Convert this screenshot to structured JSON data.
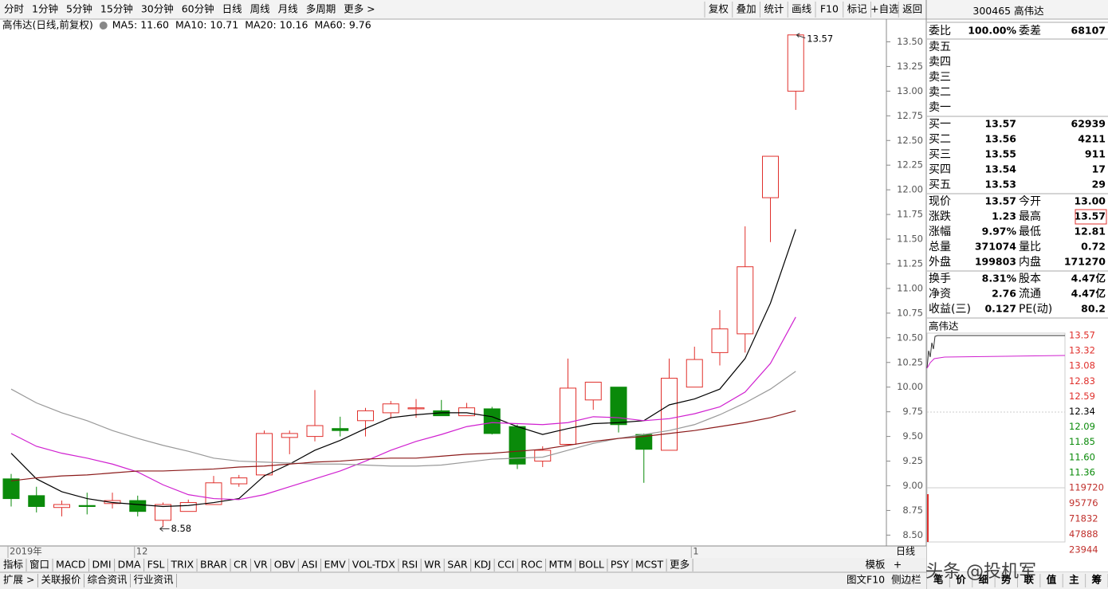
{
  "toolbar": {
    "periods": [
      "分时",
      "1分钟",
      "5分钟",
      "15分钟",
      "30分钟",
      "60分钟",
      "日线",
      "周线",
      "月线",
      "多周期",
      "更多 >"
    ],
    "active": "日线",
    "buttons": [
      "复权",
      "叠加",
      "统计",
      "画线",
      "F10",
      "标记",
      "+自选",
      "返回"
    ]
  },
  "chart_data": {
    "type": "candlestick",
    "title": "高伟达(日线,前复权)",
    "ma_labels": [
      {
        "text": "MA5: 11.60",
        "color": "#000000"
      },
      {
        "text": "MA10: 10.71",
        "color": "#d020d0"
      },
      {
        "text": "MA20: 10.16",
        "color": "#888888"
      },
      {
        "text": "MA60: 9.76",
        "color": "#8b1a1a"
      }
    ],
    "ylim": [
      8.39,
      13.73
    ],
    "yticks": [
      {
        "value": 8.5,
        "label": "8.50"
      },
      {
        "value": 8.75,
        "label": "8.75"
      },
      {
        "value": 9,
        "label": "9.00"
      },
      {
        "value": 9.25,
        "label": "9.25"
      },
      {
        "value": 9.5,
        "label": "9.50"
      },
      {
        "value": 9.75,
        "label": "9.75"
      },
      {
        "value": 10,
        "label": "10.00"
      },
      {
        "value": 10.25,
        "label": "10.25"
      },
      {
        "value": 10.5,
        "label": "10.50"
      },
      {
        "value": 10.75,
        "label": "10.75"
      },
      {
        "value": 11,
        "label": "11.00"
      },
      {
        "value": 11.25,
        "label": "11.25"
      },
      {
        "value": 11.5,
        "label": "11.50"
      },
      {
        "value": 11.75,
        "label": "11.75"
      },
      {
        "value": 12,
        "label": "12.00"
      },
      {
        "value": 12.25,
        "label": "12.25"
      },
      {
        "value": 12.5,
        "label": "12.50"
      },
      {
        "value": 12.75,
        "label": "12.75"
      },
      {
        "value": 13,
        "label": "13.00"
      },
      {
        "value": 13.25,
        "label": "13.25"
      },
      {
        "value": 13.5,
        "label": "13.50"
      }
    ],
    "categories": [
      "2019年",
      null,
      null,
      null,
      null,
      "12",
      null,
      null,
      null,
      null,
      null,
      null,
      null,
      null,
      null,
      null,
      null,
      null,
      null,
      null,
      null,
      null,
      null,
      null,
      null,
      null,
      null,
      "1",
      null,
      null,
      null,
      null
    ],
    "open": [
      9.07,
      8.9,
      8.78,
      8.8,
      8.82,
      8.85,
      8.65,
      8.74,
      8.81,
      9.02,
      9.11,
      9.49,
      9.5,
      9.58,
      9.66,
      9.74,
      9.78,
      9.76,
      9.71,
      9.78,
      9.6,
      9.25,
      9.42,
      9.87,
      10.0,
      9.52,
      9.36,
      10.0,
      10.35,
      10.54,
      11.92,
      13.0
    ],
    "high": [
      9.12,
      8.99,
      8.85,
      8.93,
      8.93,
      8.9,
      8.83,
      8.86,
      9.1,
      9.11,
      9.56,
      9.56,
      9.97,
      9.7,
      9.79,
      9.86,
      9.88,
      9.87,
      9.84,
      9.8,
      9.62,
      9.4,
      10.29,
      10.05,
      10.0,
      9.53,
      10.29,
      10.41,
      10.78,
      11.63,
      12.34,
      13.57
    ],
    "low": [
      8.79,
      8.73,
      8.69,
      8.71,
      8.77,
      8.69,
      8.58,
      8.74,
      8.81,
      8.99,
      9.09,
      9.32,
      9.45,
      9.5,
      9.5,
      9.68,
      9.69,
      9.71,
      9.71,
      9.52,
      9.17,
      9.19,
      9.42,
      9.77,
      9.54,
      9.03,
      9.36,
      10.0,
      10.22,
      10.35,
      11.47,
      12.81
    ],
    "close": [
      8.87,
      8.79,
      8.81,
      8.79,
      8.85,
      8.74,
      8.81,
      8.83,
      9.03,
      9.08,
      9.53,
      9.53,
      9.61,
      9.56,
      9.76,
      9.83,
      9.79,
      9.71,
      9.79,
      9.53,
      9.22,
      9.36,
      9.99,
      10.05,
      9.62,
      9.37,
      10.09,
      10.28,
      10.59,
      11.22,
      12.34,
      13.57
    ],
    "up_color": "#e0302c",
    "down_color": "#0a8a0a",
    "series": [
      {
        "name": "MA5",
        "color": "#000000",
        "values": [
          9.33,
          9.07,
          8.94,
          8.87,
          8.83,
          8.81,
          8.79,
          8.8,
          8.83,
          8.87,
          9.1,
          9.22,
          9.36,
          9.46,
          9.58,
          9.69,
          9.72,
          9.74,
          9.74,
          9.7,
          9.6,
          9.52,
          9.58,
          9.63,
          9.64,
          9.66,
          9.82,
          9.88,
          9.98,
          10.29,
          10.85,
          11.6
        ]
      },
      {
        "name": "MA10",
        "color": "#d020d0",
        "values": [
          9.53,
          9.4,
          9.33,
          9.28,
          9.22,
          9.14,
          9.01,
          8.91,
          8.87,
          8.86,
          8.91,
          8.99,
          9.07,
          9.15,
          9.25,
          9.36,
          9.45,
          9.52,
          9.6,
          9.64,
          9.63,
          9.62,
          9.64,
          9.7,
          9.69,
          9.66,
          9.68,
          9.73,
          9.8,
          9.95,
          10.24,
          10.71
        ]
      },
      {
        "name": "MA20",
        "color": "#999999",
        "values": [
          9.98,
          9.84,
          9.74,
          9.66,
          9.56,
          9.48,
          9.41,
          9.35,
          9.28,
          9.25,
          9.24,
          9.23,
          9.22,
          9.22,
          9.21,
          9.2,
          9.2,
          9.21,
          9.24,
          9.27,
          9.28,
          9.29,
          9.36,
          9.43,
          9.48,
          9.52,
          9.56,
          9.62,
          9.72,
          9.84,
          9.98,
          10.16
        ]
      },
      {
        "name": "MA60",
        "color": "#8b1a1a",
        "values": [
          9.05,
          9.08,
          9.1,
          9.11,
          9.13,
          9.15,
          9.15,
          9.16,
          9.17,
          9.19,
          9.2,
          9.22,
          9.24,
          9.25,
          9.27,
          9.28,
          9.28,
          9.3,
          9.32,
          9.33,
          9.35,
          9.37,
          9.41,
          9.45,
          9.48,
          9.5,
          9.53,
          9.56,
          9.6,
          9.64,
          9.69,
          9.76
        ]
      }
    ],
    "max_label": 13.57,
    "min_label": 8.58
  },
  "quote": {
    "code": "300465",
    "name": "高伟达",
    "rows": [
      {
        "l1": "委比",
        "v1": "100.00%",
        "c1": "#e0302c",
        "l2": "委差",
        "v2": "68107",
        "c2": "#e0302c"
      },
      {
        "l1": "卖五"
      },
      {
        "l1": "卖四"
      },
      {
        "l1": "卖三"
      },
      {
        "l1": "卖二"
      },
      {
        "l1": "卖一"
      },
      {
        "l1": "买一",
        "v1": "13.57",
        "c1": "#e0302c",
        "v2": "62939",
        "c2": "#c0302c"
      },
      {
        "l1": "买二",
        "v1": "13.56",
        "c1": "#e0302c",
        "v2": "4211",
        "c2": "#c0302c"
      },
      {
        "l1": "买三",
        "v1": "13.55",
        "c1": "#e0302c",
        "v2": "911",
        "c2": "#c0302c"
      },
      {
        "l1": "买四",
        "v1": "13.54",
        "c1": "#e0302c",
        "v2": "17",
        "c2": "#c0302c"
      },
      {
        "l1": "买五",
        "v1": "13.53",
        "c1": "#e0302c",
        "v2": "29",
        "c2": "#c0302c"
      },
      {
        "l1": "现价",
        "v1": "13.57",
        "c1": "#e0302c",
        "l2": "今开",
        "v2": "13.00",
        "c2": "#e0302c"
      },
      {
        "l1": "涨跌",
        "v1": "1.23",
        "c1": "#e0302c",
        "l2": "最高",
        "v2": "13.57",
        "c2": "#e0302c"
      },
      {
        "l1": "涨幅",
        "v1": "9.97%",
        "c1": "#e0302c",
        "l2": "最低",
        "v2": "12.81",
        "c2": "#e0302c"
      },
      {
        "l1": "总量",
        "v1": "371074",
        "c1": "#b86a00",
        "l2": "量比",
        "v2": "0.72",
        "c2": "#0a8a0a"
      },
      {
        "l1": "外盘",
        "v1": "199803",
        "c1": "#e0302c",
        "l2": "内盘",
        "v2": "171270",
        "c2": "#0a8a0a"
      },
      {
        "l1": "换手",
        "v1": "8.31%",
        "c1": "#000000",
        "l2": "股本",
        "v2": "4.47亿",
        "c2": "#000000"
      },
      {
        "l1": "净资",
        "v1": "2.76",
        "c1": "#000000",
        "l2": "流通",
        "v2": "4.47亿",
        "c2": "#000000"
      },
      {
        "l1": "收益(三)",
        "v1": "0.127",
        "c1": "#000000",
        "l2": "PE(动)",
        "v2": "80.2",
        "c2": "#000000"
      }
    ]
  },
  "mini": {
    "title": "高伟达",
    "price_ticks": [
      {
        "label": "13.57",
        "color": "#e0302c"
      },
      {
        "label": "13.32",
        "color": "#e0302c"
      },
      {
        "label": "13.08",
        "color": "#e0302c"
      },
      {
        "label": "12.83",
        "color": "#e0302c"
      },
      {
        "label": "12.59",
        "color": "#e0302c"
      },
      {
        "label": "12.34",
        "color": "#000000"
      },
      {
        "label": "12.09",
        "color": "#0a8a0a"
      },
      {
        "label": "11.85",
        "color": "#0a8a0a"
      },
      {
        "label": "11.60",
        "color": "#0a8a0a"
      },
      {
        "label": "11.36",
        "color": "#0a8a0a"
      }
    ],
    "volume_ticks": [
      "119720",
      "95776",
      "71832",
      "47888",
      "23944"
    ]
  },
  "tabs": {
    "items": [
      "指标",
      "窗口",
      "MACD",
      "DMI",
      "DMA",
      "FSL",
      "TRIX",
      "BRAR",
      "CR",
      "VR",
      "OBV",
      "ASI",
      "EMV",
      "VOL-TDX",
      "RSI",
      "WR",
      "SAR",
      "KDJ",
      "CCI",
      "ROC",
      "MTM",
      "BOLL",
      "PSY",
      "MCST",
      "更多"
    ],
    "active": "更多",
    "right": [
      "模板",
      "+"
    ],
    "period": "日线"
  },
  "footer": {
    "left": [
      {
        "text": "扩展 >",
        "color": "#000000"
      },
      {
        "text": "关联报价",
        "color": "#000000"
      },
      {
        "text": "综合资讯",
        "color": "#e0302c"
      },
      {
        "text": "行业资讯",
        "color": "#e0302c"
      }
    ],
    "right": [
      {
        "text": "图文F10",
        "color": "#e0302c"
      },
      {
        "text": "侧边栏",
        "color": "#000000"
      }
    ],
    "side": [
      "笔",
      "价",
      "细",
      "势",
      "联",
      "值",
      "主",
      "筹"
    ]
  },
  "watermark": "头条 @投机军"
}
